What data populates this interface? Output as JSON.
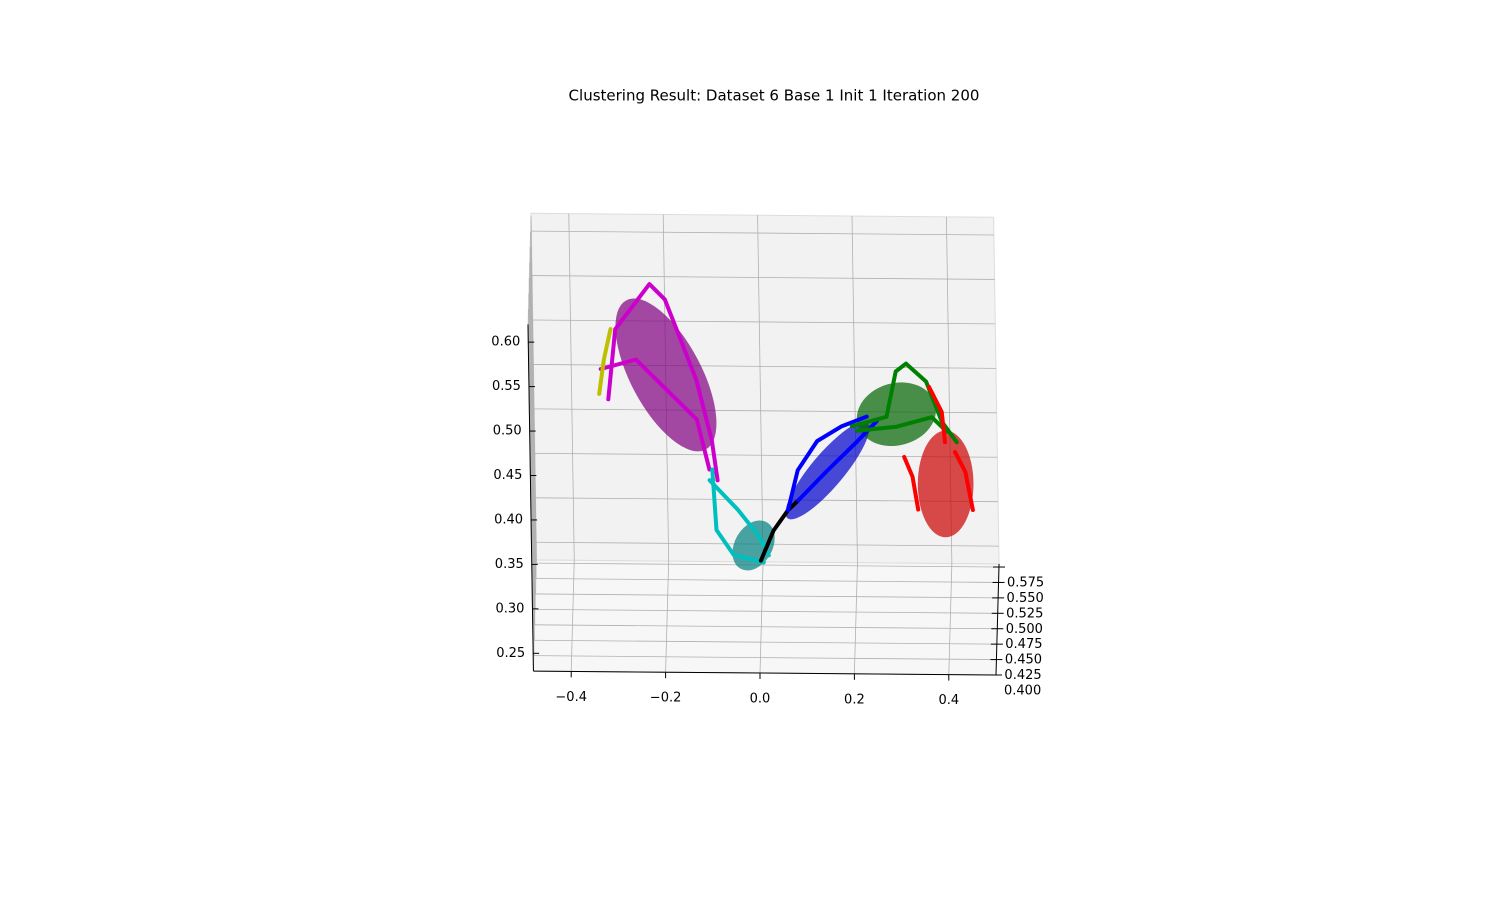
{
  "chart_data": {
    "type": "line3d",
    "title": "Clustering Result: Dataset 6 Base 1 Init 1 Iteration 200",
    "xlim": [
      -0.48,
      0.5
    ],
    "ylim": [
      0.4,
      0.58
    ],
    "zlim": [
      0.23,
      0.62
    ],
    "xticks": [
      {
        "value": -0.4,
        "label": "−0.4"
      },
      {
        "value": -0.2,
        "label": "−0.2"
      },
      {
        "value": 0,
        "label": "0.0"
      },
      {
        "value": 0.2,
        "label": "0.2"
      },
      {
        "value": 0.4,
        "label": "0.4"
      }
    ],
    "yticks": [
      {
        "value": 0.4,
        "label": "0.400"
      },
      {
        "value": 0.425,
        "label": "0.425"
      },
      {
        "value": 0.45,
        "label": "0.450"
      },
      {
        "value": 0.475,
        "label": "0.475"
      },
      {
        "value": 0.5,
        "label": "0.500"
      },
      {
        "value": 0.525,
        "label": "0.525"
      },
      {
        "value": 0.55,
        "label": "0.550"
      },
      {
        "value": 0.575,
        "label": "0.575"
      }
    ],
    "zticks": [
      0.25,
      {
        "value": 0.3,
        "label": "0.30"
      },
      0.35,
      {
        "value": 0.4,
        "label": "0.40"
      },
      0.45,
      {
        "value": 0.5,
        "label": "0.50"
      },
      0.55,
      {
        "value": 0.6,
        "label": "0.60"
      }
    ],
    "grid": true,
    "clusters": [
      {
        "color": "#800080",
        "center": [
          -0.195,
          0.5,
          0.495
        ],
        "size": [
          0.075,
          0.095
        ],
        "angle": -28
      },
      {
        "color": "#008080",
        "center": [
          -0.015,
          0.5,
          0.304
        ],
        "size": [
          0.04,
          0.03
        ],
        "angle": 30
      },
      {
        "color": "#0000cc",
        "center": [
          0.144,
          0.5,
          0.389
        ],
        "size": [
          0.035,
          0.07
        ],
        "angle": 40
      },
      {
        "color": "#006400",
        "center": [
          0.292,
          0.5,
          0.453
        ],
        "size": [
          0.085,
          0.035
        ],
        "angle": -15
      },
      {
        "color": "#cc0000",
        "center": [
          0.394,
          0.5,
          0.375
        ],
        "size": [
          0.059,
          0.06
        ],
        "angle": 0
      }
    ],
    "series": [
      {
        "color": "#cc00cc",
        "x": [
          -0.318,
          -0.301,
          -0.227,
          -0.195,
          -0.131,
          -0.1,
          -0.089
        ],
        "y": [
          0.5,
          0.5,
          0.5,
          0.5,
          0.5,
          0.5,
          0.5
        ],
        "z": [
          0.467,
          0.546,
          0.597,
          0.58,
          0.49,
          0.422,
          0.377
        ]
      },
      {
        "color": "#cc00cc",
        "x": [
          -0.333,
          -0.258,
          -0.131,
          -0.106
        ],
        "y": [
          0.5,
          0.5,
          0.5,
          0.5
        ],
        "z": [
          0.501,
          0.512,
          0.445,
          0.389
        ]
      },
      {
        "color": "#bfbf00",
        "x": [
          -0.337,
          -0.326,
          -0.311
        ],
        "y": [
          0.5,
          0.5,
          0.5
        ],
        "z": [
          0.473,
          0.512,
          0.546
        ]
      },
      {
        "color": "#00bfbf",
        "x": [
          -0.1,
          -0.093,
          -0.057,
          0.006
        ],
        "y": [
          0.5,
          0.5,
          0.5,
          0.5
        ],
        "z": [
          0.389,
          0.321,
          0.293,
          0.285
        ]
      },
      {
        "color": "#00bfbf",
        "x": [
          -0.106,
          -0.047,
          -0.004,
          0.017
        ],
        "y": [
          0.5,
          0.5,
          0.5,
          0.5
        ],
        "z": [
          0.377,
          0.344,
          0.315,
          0.293
        ]
      },
      {
        "color": "#000000",
        "x": [
          0,
          0.028,
          0.059,
          0.081
        ],
        "y": [
          0.5,
          0.5,
          0.5,
          0.5
        ],
        "z": [
          0.287,
          0.321,
          0.344,
          0.355
        ]
      },
      {
        "color": "#0000ff",
        "x": [
          0.059,
          0.081,
          0.123,
          0.176,
          0.229
        ],
        "y": [
          0.5,
          0.5,
          0.5,
          0.5,
          0.5
        ],
        "z": [
          0.344,
          0.389,
          0.422,
          0.439,
          0.45
        ]
      },
      {
        "color": "#0000ff",
        "x": [
          0.081,
          0.144,
          0.208,
          0.25
        ],
        "y": [
          0.5,
          0.5,
          0.5,
          0.5
        ],
        "z": [
          0.355,
          0.389,
          0.422,
          0.445
        ]
      },
      {
        "color": "#008000",
        "x": [
          0.197,
          0.271,
          0.292,
          0.314,
          0.356,
          0.388,
          0.419
        ],
        "y": [
          0.5,
          0.5,
          0.5,
          0.5,
          0.5,
          0.5,
          0.5
        ],
        "z": [
          0.439,
          0.45,
          0.501,
          0.51,
          0.49,
          0.445,
          0.422
        ]
      },
      {
        "color": "#008000",
        "x": [
          0.208,
          0.292,
          0.367,
          0.398
        ],
        "y": [
          0.5,
          0.5,
          0.5,
          0.5
        ],
        "z": [
          0.434,
          0.439,
          0.45,
          0.434
        ]
      },
      {
        "color": "#ff0000",
        "x": [
          0.362,
          0.388,
          0.394
        ],
        "y": [
          0.5,
          0.5,
          0.5
        ],
        "z": [
          0.484,
          0.456,
          0.422
        ]
      },
      {
        "color": "#ff0000",
        "x": [
          0.307,
          0.324,
          0.335
        ],
        "y": [
          0.5,
          0.5,
          0.5
        ],
        "z": [
          0.405,
          0.383,
          0.346
        ]
      },
      {
        "color": "#ff0000",
        "x": [
          0.415,
          0.436,
          0.451
        ],
        "y": [
          0.5,
          0.5,
          0.5
        ],
        "z": [
          0.411,
          0.389,
          0.346
        ]
      }
    ]
  }
}
